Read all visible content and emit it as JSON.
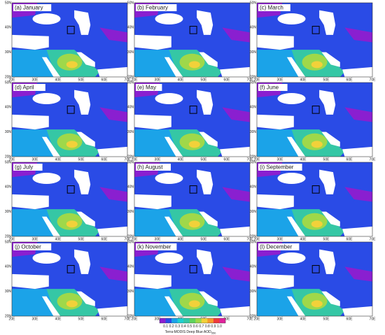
{
  "panels": [
    {
      "label": "(a) January"
    },
    {
      "label": "(b) February"
    },
    {
      "label": "(c) March"
    },
    {
      "label": "(d) April"
    },
    {
      "label": "(e) May"
    },
    {
      "label": "(f) June"
    },
    {
      "label": "(g) July"
    },
    {
      "label": "(h) August"
    },
    {
      "label": "(i) September"
    },
    {
      "label": "(j) October"
    },
    {
      "label": "(k) November"
    },
    {
      "label": "(l) December"
    }
  ],
  "axes": {
    "x_ticks": [
      "20E",
      "30E",
      "40E",
      "50E",
      "60E",
      "70E"
    ],
    "y_ticks": [
      "20N",
      "30N",
      "40N",
      "50N"
    ]
  },
  "colorbar": {
    "ticks": [
      "0.1",
      "0.2",
      "0.3",
      "0.4",
      "0.5",
      "0.6",
      "0.7",
      "0.8",
      "0.9",
      "1.0"
    ],
    "title": "Terra-MODIS Deep Blue AOD",
    "title_sub": "550"
  }
}
